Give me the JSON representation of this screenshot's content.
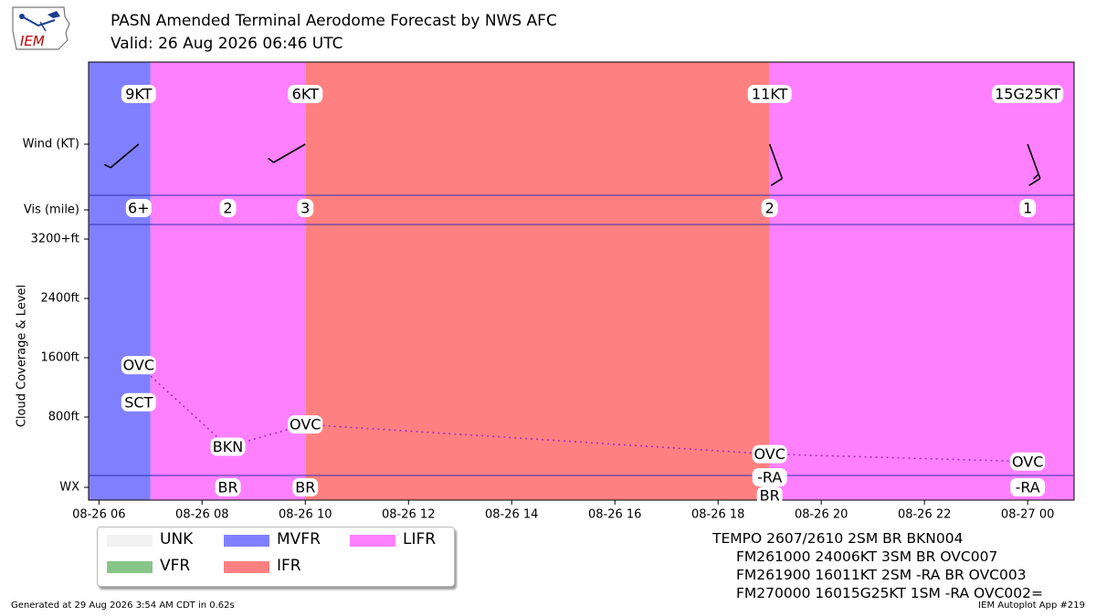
{
  "header": {
    "title": "PASN Amended Terminal Aerodome Forecast by NWS AFC",
    "valid": "Valid: 26 Aug 2026 06:46 UTC",
    "logo_text": "IEM"
  },
  "footer": {
    "generated": "Generated at 29 Aug 2026 3:54 AM CDT in 0.62s",
    "app": "IEM Autoplot App #219"
  },
  "raw_taf": [
    "TEMPO 2607/2610 2SM BR BKN004",
    "FM261000 24006KT 3SM BR OVC007",
    "FM261900 16011KT 2SM -RA BR OVC003",
    "FM270000 16015G25KT 1SM -RA OVC002="
  ],
  "legend": [
    {
      "label": "UNK",
      "color": "#f2f2f2"
    },
    {
      "label": "VFR",
      "color": "#88c688"
    },
    {
      "label": "MVFR",
      "color": "#8080ff"
    },
    {
      "label": "IFR",
      "color": "#ff8080"
    },
    {
      "label": "LIFR",
      "color": "#ff80ff"
    }
  ],
  "chart_data": {
    "type": "timeline",
    "x_axis": {
      "ticks": [
        "08-26 06",
        "08-26 08",
        "08-26 10",
        "08-26 12",
        "08-26 14",
        "08-26 16",
        "08-26 18",
        "08-26 20",
        "08-26 22",
        "08-27 00"
      ],
      "range_hours": [
        5.8,
        24.9
      ]
    },
    "y_labels": {
      "wind": "Wind (KT)",
      "vis": "Vis (mile)",
      "cloud": "Cloud Coverage & Level",
      "wx": "WX"
    },
    "cloud_ticks": [
      "3200+ft",
      "2400ft",
      "1600ft",
      "800ft"
    ],
    "cloud_tick_values": [
      3200,
      2400,
      1600,
      800
    ],
    "category_bands": [
      {
        "start": 5.8,
        "end": 7.0,
        "category": "MVFR",
        "color": "#8080ff"
      },
      {
        "start": 7.0,
        "end": 10.0,
        "category": "LIFR",
        "color": "#ff80ff"
      },
      {
        "start": 10.0,
        "end": 19.0,
        "category": "IFR",
        "color": "#ff8080"
      },
      {
        "start": 19.0,
        "end": 24.9,
        "category": "LIFR",
        "color": "#ff80ff"
      }
    ],
    "wind": [
      {
        "t": 6.77,
        "label": "9KT",
        "dir": 230,
        "speed": 9
      },
      {
        "t": 10.0,
        "label": "6KT",
        "dir": 240,
        "speed": 6
      },
      {
        "t": 19.0,
        "label": "11KT",
        "dir": 160,
        "speed": 11
      },
      {
        "t": 24.0,
        "label": "15G25KT",
        "dir": 160,
        "speed": 15
      }
    ],
    "visibility": [
      {
        "t": 6.77,
        "label": "6+"
      },
      {
        "t": 8.5,
        "label": "2"
      },
      {
        "t": 10.0,
        "label": "3"
      },
      {
        "t": 19.0,
        "label": "2"
      },
      {
        "t": 24.0,
        "label": "1"
      }
    ],
    "clouds": [
      {
        "t": 6.77,
        "label": "OVC",
        "level": 1500
      },
      {
        "t": 6.77,
        "label": "SCT",
        "level": 1000
      },
      {
        "t": 8.5,
        "label": "BKN",
        "level": 400
      },
      {
        "t": 10.0,
        "label": "OVC",
        "level": 700
      },
      {
        "t": 19.0,
        "label": "OVC",
        "level": 300
      },
      {
        "t": 24.0,
        "label": "OVC",
        "level": 200
      }
    ],
    "cloud_line": [
      {
        "t": 6.77,
        "level": 1500
      },
      {
        "t": 8.5,
        "level": 400
      },
      {
        "t": 10.0,
        "level": 700
      },
      {
        "t": 19.0,
        "level": 300
      },
      {
        "t": 24.0,
        "level": 200
      }
    ],
    "weather": [
      {
        "t": 8.5,
        "label": "BR"
      },
      {
        "t": 10.0,
        "label": "BR"
      },
      {
        "t": 19.0,
        "label": "-RA BR"
      },
      {
        "t": 24.0,
        "label": "-RA"
      }
    ]
  }
}
